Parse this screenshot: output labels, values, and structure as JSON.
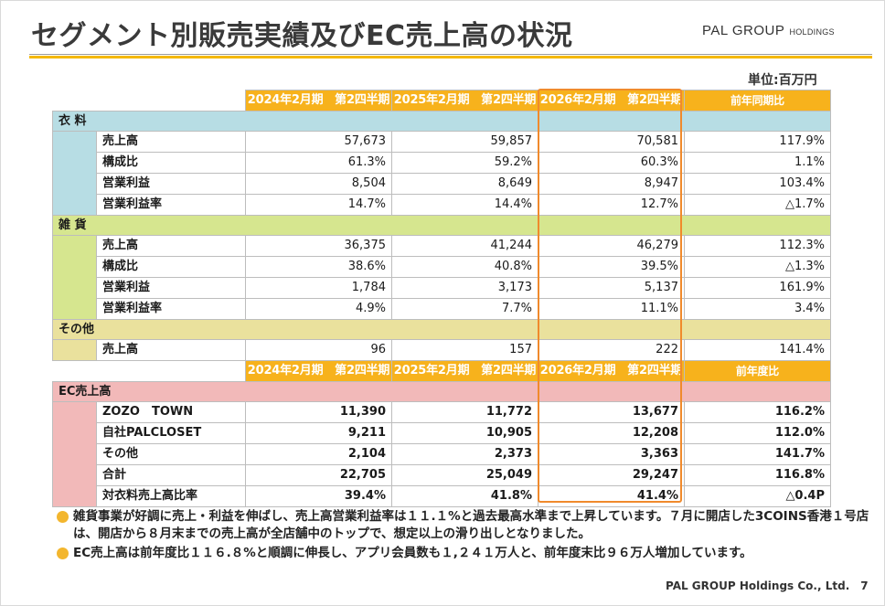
{
  "title": "セグメント別販売実績及びEC売上高の状況",
  "logo": {
    "main": "PAL GROUP",
    "sub": "HOLDINGS"
  },
  "unit": "単位:百万円",
  "header1": [
    "2024年2月期　第2四半期",
    "2025年2月期　第2四半期",
    "2026年2月期　第2四半期",
    "前年同期比"
  ],
  "header2": [
    "2024年2月期　第2四半期",
    "2025年2月期　第2四半期",
    "2026年2月期　第2四半期",
    "前年度比"
  ],
  "sections": {
    "clothing": {
      "label": "衣 料",
      "rows": [
        {
          "label": "売上高",
          "values": [
            "57,673",
            "59,857",
            "70,581",
            "117.9%"
          ]
        },
        {
          "label": "構成比",
          "values": [
            "61.3%",
            "59.2%",
            "60.3%",
            "1.1%"
          ]
        },
        {
          "label": "営業利益",
          "values": [
            "8,504",
            "8,649",
            "8,947",
            "103.4%"
          ]
        },
        {
          "label": "営業利益率",
          "values": [
            "14.7%",
            "14.4%",
            "12.7%",
            "△1.7%"
          ]
        }
      ]
    },
    "goods": {
      "label": "雑 貨",
      "rows": [
        {
          "label": "売上高",
          "values": [
            "36,375",
            "41,244",
            "46,279",
            "112.3%"
          ]
        },
        {
          "label": "構成比",
          "values": [
            "38.6%",
            "40.8%",
            "39.5%",
            "△1.3%"
          ]
        },
        {
          "label": "営業利益",
          "values": [
            "1,784",
            "3,173",
            "5,137",
            "161.9%"
          ]
        },
        {
          "label": "営業利益率",
          "values": [
            "4.9%",
            "7.7%",
            "11.1%",
            "3.4%"
          ]
        }
      ]
    },
    "other": {
      "label": "その他",
      "rows": [
        {
          "label": "売上高",
          "values": [
            "96",
            "157",
            "222",
            "141.4%"
          ]
        }
      ]
    },
    "ec": {
      "label": "EC売上高",
      "rows": [
        {
          "label": "ZOZO　TOWN",
          "values": [
            "11,390",
            "11,772",
            "13,677",
            "116.2%"
          ]
        },
        {
          "label": "自社PALCLOSET",
          "values": [
            "9,211",
            "10,905",
            "12,208",
            "112.0%"
          ]
        },
        {
          "label": "その他",
          "values": [
            "2,104",
            "2,373",
            "3,363",
            "141.7%"
          ]
        },
        {
          "label": "合計",
          "values": [
            "22,705",
            "25,049",
            "29,247",
            "116.8%"
          ]
        },
        {
          "label": "対衣料売上高比率",
          "values": [
            "39.4%",
            "41.8%",
            "41.4%",
            "△0.4P"
          ]
        }
      ]
    }
  },
  "notes": [
    "雑貨事業が好調に売上・利益を伸ばし、売上高営業利益率は１１.１%と過去最高水準まで上昇しています。７月に開店した3COINS香港１号店は、開店から８月末までの売上高が全店舗中のトップで、想定以上の滑り出しとなりました。",
    "EC売上高は前年度比１１６.８%と順調に伸長し、アプリ会員数も１,２４１万人と、前年度末比９６万人増加しています。"
  ],
  "footer": {
    "company": "PAL GROUP Holdings Co., Ltd.",
    "page": "7"
  },
  "colors": {
    "header": "#f7b21c",
    "clothing": "#b7dde4",
    "goods": "#d6e68f",
    "other": "#eae19d",
    "ec": "#f2b9b9",
    "highlight": "#f08a2c",
    "bullet": "#f3b62e"
  }
}
